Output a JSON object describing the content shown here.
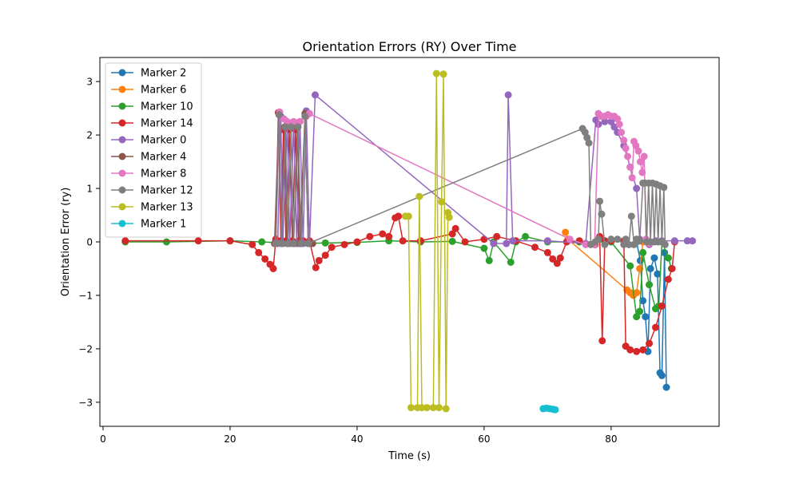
{
  "chart_data": {
    "type": "line",
    "title": "Orientation Errors (RY) Over Time",
    "xlabel": "Time (s)",
    "ylabel": "Orientation Error (ry)",
    "xlim": [
      -0.5,
      97
    ],
    "ylim": [
      -3.45,
      3.45
    ],
    "xticks": [
      0,
      20,
      40,
      60,
      80
    ],
    "yticks": [
      -3,
      -2,
      -1,
      0,
      1,
      2,
      3
    ],
    "xtick_labels": [
      "0",
      "20",
      "40",
      "60",
      "80"
    ],
    "ytick_labels": [
      "−3",
      "−2",
      "−1",
      "0",
      "1",
      "2",
      "3"
    ],
    "grid": false,
    "legend_position": "upper-left",
    "series": [
      {
        "name": "Marker 2",
        "color": "#1f77b4",
        "points": [
          [
            84,
            0
          ],
          [
            84.6,
            -0.35
          ],
          [
            85,
            -1.1
          ],
          [
            85.4,
            -1.4
          ],
          [
            85.8,
            -2.05
          ],
          [
            86.2,
            -0.5
          ],
          [
            86.8,
            -0.3
          ],
          [
            87.3,
            -0.6
          ],
          [
            87.7,
            -2.45
          ],
          [
            88,
            -2.5
          ],
          [
            88.4,
            -0.2
          ],
          [
            88.7,
            -2.72
          ]
        ]
      },
      {
        "name": "Marker 6",
        "color": "#ff7f0e",
        "points": [
          [
            72.8,
            0.18
          ],
          [
            73.2,
            0.05
          ],
          [
            82.5,
            -0.9
          ],
          [
            83,
            -0.95
          ],
          [
            83.5,
            -1.0
          ],
          [
            84,
            -0.95
          ],
          [
            84.5,
            -0.5
          ],
          [
            85,
            0
          ]
        ]
      },
      {
        "name": "Marker 10",
        "color": "#2ca02c",
        "points": [
          [
            3.5,
            0
          ],
          [
            10,
            0
          ],
          [
            20,
            0.02
          ],
          [
            25,
            0
          ],
          [
            30,
            -0.03
          ],
          [
            35,
            -0.02
          ],
          [
            40,
            -0.01
          ],
          [
            45,
            0.02
          ],
          [
            50,
            0
          ],
          [
            55,
            0.01
          ],
          [
            60,
            -0.12
          ],
          [
            60.8,
            -0.35
          ],
          [
            61.5,
            0
          ],
          [
            64.2,
            -0.38
          ],
          [
            65,
            0
          ],
          [
            66.5,
            0.1
          ],
          [
            70,
            0
          ],
          [
            75,
            0
          ],
          [
            80,
            0
          ],
          [
            83,
            -0.45
          ],
          [
            84,
            -1.4
          ],
          [
            84.5,
            -1.3
          ],
          [
            85,
            -0.2
          ],
          [
            86,
            -0.8
          ],
          [
            87,
            -1.25
          ],
          [
            87.5,
            -1.2
          ],
          [
            88,
            0
          ],
          [
            89,
            -0.3
          ],
          [
            89.5,
            -0.5
          ]
        ]
      },
      {
        "name": "Marker 14",
        "color": "#d62728",
        "points": [
          [
            3.5,
            0.02
          ],
          [
            15,
            0.02
          ],
          [
            20,
            0.02
          ],
          [
            23.5,
            -0.05
          ],
          [
            24.5,
            -0.2
          ],
          [
            25.5,
            -0.32
          ],
          [
            26.3,
            -0.42
          ],
          [
            26.8,
            -0.5
          ],
          [
            27.2,
            0.05
          ],
          [
            27.6,
            2.42
          ],
          [
            28.0,
            0.02
          ],
          [
            28.4,
            2.1
          ],
          [
            28.8,
            0.02
          ],
          [
            29.3,
            2.1
          ],
          [
            29.8,
            0.02
          ],
          [
            30.3,
            2.1
          ],
          [
            30.8,
            0.02
          ],
          [
            31.5,
            0.02
          ],
          [
            32.5,
            0.02
          ],
          [
            33.5,
            -0.48
          ],
          [
            34.0,
            -0.35
          ],
          [
            35,
            -0.25
          ],
          [
            36,
            -0.1
          ],
          [
            38,
            -0.05
          ],
          [
            40,
            0.0
          ],
          [
            42,
            0.1
          ],
          [
            44,
            0.15
          ],
          [
            45,
            0.1
          ],
          [
            46,
            0.45
          ],
          [
            46.5,
            0.48
          ],
          [
            47.2,
            0.02
          ],
          [
            50,
            0.02
          ],
          [
            55,
            0.15
          ],
          [
            55.5,
            0.25
          ],
          [
            57,
            0.0
          ],
          [
            60,
            0.05
          ],
          [
            62,
            0.1
          ],
          [
            65,
            0.02
          ],
          [
            68,
            -0.1
          ],
          [
            70,
            -0.2
          ],
          [
            70.8,
            -0.32
          ],
          [
            71.5,
            -0.4
          ],
          [
            72,
            -0.3
          ],
          [
            73,
            0.0
          ],
          [
            75,
            0.02
          ],
          [
            77.5,
            -0.05
          ],
          [
            78.2,
            0.1
          ],
          [
            78.6,
            -1.85
          ],
          [
            79,
            0.02
          ],
          [
            80,
            0.02
          ],
          [
            82,
            0.02
          ],
          [
            82.3,
            -1.95
          ],
          [
            83,
            -2.02
          ],
          [
            84,
            -2.05
          ],
          [
            85,
            -2.02
          ],
          [
            86,
            -1.9
          ],
          [
            87,
            -1.6
          ],
          [
            88,
            -1.2
          ],
          [
            89,
            -0.7
          ],
          [
            89.6,
            -0.5
          ],
          [
            90,
            0.0
          ]
        ]
      },
      {
        "name": "Marker 0",
        "color": "#9467bd",
        "points": [
          [
            27.5,
            -0.03
          ],
          [
            28,
            2.35
          ],
          [
            28.3,
            -0.03
          ],
          [
            29,
            2.2
          ],
          [
            29.4,
            -0.03
          ],
          [
            30,
            2.2
          ],
          [
            30.5,
            -0.03
          ],
          [
            31,
            2.25
          ],
          [
            31.5,
            -0.03
          ],
          [
            32,
            2.45
          ],
          [
            32.5,
            -0.03
          ],
          [
            33.4,
            2.75
          ],
          [
            61.5,
            -0.03
          ],
          [
            63.5,
            -0.03
          ],
          [
            63.8,
            2.75
          ],
          [
            64.5,
            0.02
          ],
          [
            70,
            0.02
          ],
          [
            76,
            -0.03
          ],
          [
            77.6,
            2.28
          ],
          [
            78,
            2.2
          ],
          [
            79,
            2.25
          ],
          [
            80,
            2.25
          ],
          [
            80.5,
            2.15
          ],
          [
            81,
            2.05
          ],
          [
            82,
            1.8
          ],
          [
            83,
            1.4
          ],
          [
            84,
            1.0
          ],
          [
            84.5,
            0.05
          ],
          [
            86,
            -0.05
          ],
          [
            87,
            0.02
          ],
          [
            88,
            0.02
          ],
          [
            90,
            0.02
          ],
          [
            92,
            0.02
          ],
          [
            92.8,
            0.02
          ]
        ]
      },
      {
        "name": "Marker 4",
        "color": "#8c564b",
        "points": [
          [
            27,
            -0.03
          ],
          [
            27.7,
            2.4
          ],
          [
            28.1,
            -0.03
          ],
          [
            28.6,
            2.15
          ],
          [
            29,
            -0.03
          ],
          [
            29.6,
            2.15
          ],
          [
            30,
            -0.03
          ],
          [
            30.6,
            2.15
          ],
          [
            31,
            -0.03
          ],
          [
            31.8,
            2.4
          ],
          [
            32.3,
            -0.03
          ],
          [
            33,
            -0.03
          ]
        ]
      },
      {
        "name": "Marker 8",
        "color": "#e377c2",
        "points": [
          [
            27.2,
            -0.03
          ],
          [
            27.8,
            2.43
          ],
          [
            28.5,
            2.3
          ],
          [
            29,
            2.25
          ],
          [
            30,
            2.25
          ],
          [
            31,
            2.25
          ],
          [
            32,
            2.35
          ],
          [
            32.5,
            2.4
          ],
          [
            73.5,
            0.05
          ],
          [
            76,
            -0.05
          ],
          [
            77.4,
            -0.05
          ],
          [
            78,
            2.4
          ],
          [
            78.5,
            2.35
          ],
          [
            79,
            2.35
          ],
          [
            79.5,
            2.38
          ],
          [
            80,
            2.35
          ],
          [
            80.5,
            2.35
          ],
          [
            81,
            2.3
          ],
          [
            81.3,
            2.2
          ],
          [
            81.6,
            2.05
          ],
          [
            82,
            1.9
          ],
          [
            82.3,
            1.75
          ],
          [
            82.6,
            1.6
          ],
          [
            83,
            1.4
          ],
          [
            83.3,
            1.2
          ],
          [
            83.6,
            1.88
          ],
          [
            83.9,
            1.8
          ],
          [
            84.3,
            1.7
          ],
          [
            84.6,
            1.5
          ],
          [
            84.9,
            1.3
          ],
          [
            85.2,
            1.6
          ],
          [
            85.5,
            0.05
          ],
          [
            86,
            -0.03
          ]
        ]
      },
      {
        "name": "Marker 12",
        "color": "#7f7f7f",
        "points": [
          [
            27.2,
            -0.03
          ],
          [
            27.7,
            2.38
          ],
          [
            28.1,
            -0.03
          ],
          [
            28.7,
            2.15
          ],
          [
            29.1,
            -0.03
          ],
          [
            29.6,
            2.15
          ],
          [
            30,
            -0.03
          ],
          [
            30.7,
            2.15
          ],
          [
            31.2,
            -0.03
          ],
          [
            31.8,
            2.35
          ],
          [
            32.3,
            -0.03
          ],
          [
            75.5,
            2.12
          ],
          [
            75.9,
            2.05
          ],
          [
            76.2,
            1.95
          ],
          [
            76.5,
            1.85
          ],
          [
            76.8,
            -0.05
          ],
          [
            77.5,
            0
          ],
          [
            78,
            0.05
          ],
          [
            78.2,
            0.76
          ],
          [
            78.5,
            0.52
          ],
          [
            79,
            -0.05
          ],
          [
            80,
            0.05
          ],
          [
            81,
            0.05
          ],
          [
            82,
            -0.05
          ],
          [
            82.3,
            0.05
          ],
          [
            82.8,
            -0.05
          ],
          [
            83.2,
            0.48
          ],
          [
            83.6,
            -0.05
          ],
          [
            84,
            0.05
          ],
          [
            84.5,
            0.02
          ],
          [
            85,
            1.1
          ],
          [
            85.3,
            1.1
          ],
          [
            85.6,
            0
          ],
          [
            85.9,
            1.1
          ],
          [
            86.2,
            0
          ],
          [
            86.5,
            1.1
          ],
          [
            86.8,
            0
          ],
          [
            87.1,
            1.08
          ],
          [
            87.4,
            0
          ],
          [
            87.7,
            1.05
          ],
          [
            88,
            0
          ],
          [
            88.3,
            1.02
          ],
          [
            88.5,
            -0.05
          ]
        ]
      },
      {
        "name": "Marker 13",
        "color": "#bcbd22",
        "points": [
          [
            47.6,
            0.48
          ],
          [
            48.1,
            0.48
          ],
          [
            48.5,
            -3.1
          ],
          [
            49.5,
            -3.1
          ],
          [
            49.8,
            0.85
          ],
          [
            50.2,
            -3.1
          ],
          [
            51,
            -3.1
          ],
          [
            52,
            -3.1
          ],
          [
            52.5,
            3.15
          ],
          [
            52.9,
            -3.1
          ],
          [
            53.3,
            0.75
          ],
          [
            53.6,
            3.14
          ],
          [
            54,
            -3.12
          ],
          [
            54.3,
            0.55
          ],
          [
            54.5,
            0.46
          ]
        ]
      },
      {
        "name": "Marker 1",
        "color": "#17becf",
        "points": [
          [
            69.3,
            -3.12
          ],
          [
            69.8,
            -3.11
          ],
          [
            70.3,
            -3.12
          ],
          [
            70.8,
            -3.13
          ],
          [
            71.2,
            -3.14
          ]
        ]
      }
    ]
  }
}
